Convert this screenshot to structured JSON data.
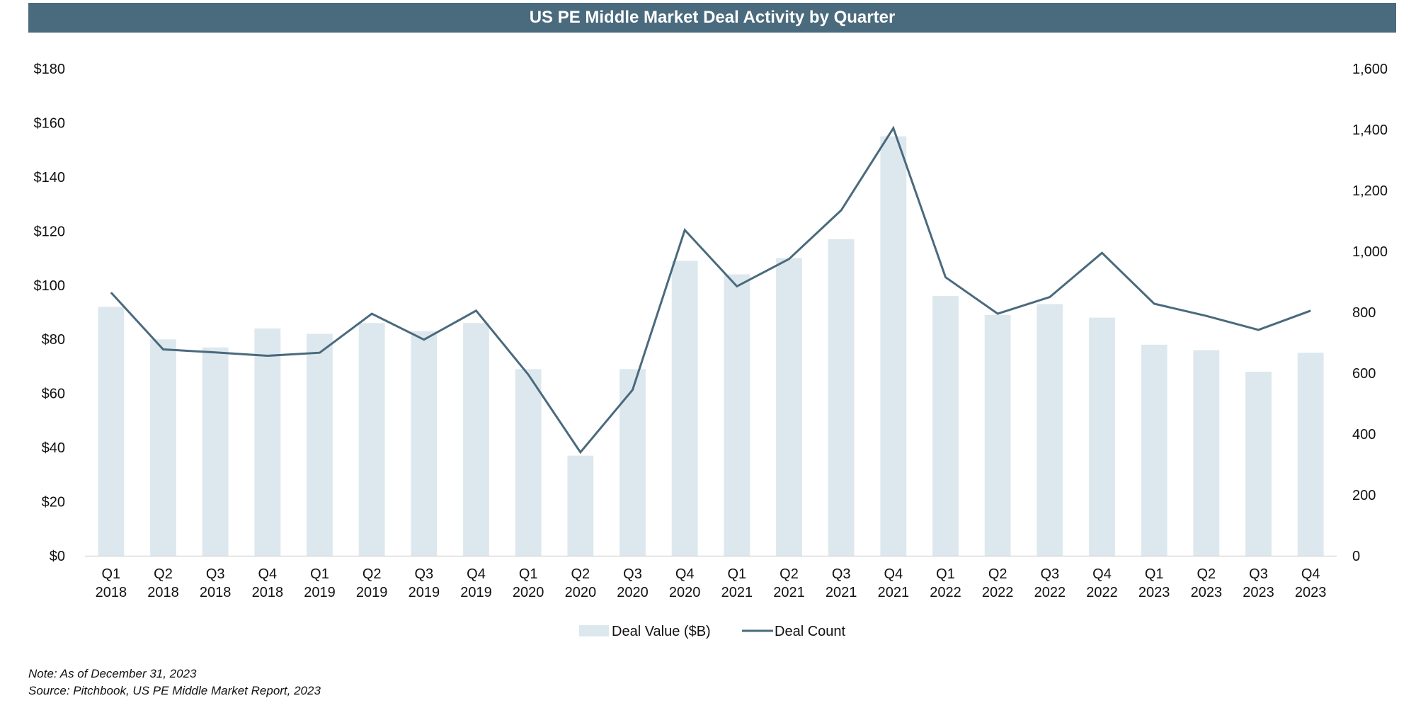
{
  "chart_data": {
    "type": "bar",
    "title": "US PE Middle Market Deal Activity by Quarter",
    "categories": [
      [
        "Q1",
        "2018"
      ],
      [
        "Q2",
        "2018"
      ],
      [
        "Q3",
        "2018"
      ],
      [
        "Q4",
        "2018"
      ],
      [
        "Q1",
        "2019"
      ],
      [
        "Q2",
        "2019"
      ],
      [
        "Q3",
        "2019"
      ],
      [
        "Q4",
        "2019"
      ],
      [
        "Q1",
        "2020"
      ],
      [
        "Q2",
        "2020"
      ],
      [
        "Q3",
        "2020"
      ],
      [
        "Q4",
        "2020"
      ],
      [
        "Q1",
        "2021"
      ],
      [
        "Q2",
        "2021"
      ],
      [
        "Q3",
        "2021"
      ],
      [
        "Q4",
        "2021"
      ],
      [
        "Q1",
        "2022"
      ],
      [
        "Q2",
        "2022"
      ],
      [
        "Q3",
        "2022"
      ],
      [
        "Q4",
        "2022"
      ],
      [
        "Q1",
        "2023"
      ],
      [
        "Q2",
        "2023"
      ],
      [
        "Q3",
        "2023"
      ],
      [
        "Q4",
        "2023"
      ]
    ],
    "series": [
      {
        "name": "Deal Value ($B)",
        "type": "bar",
        "axis": "left",
        "color": "#dde8ee",
        "values": [
          92,
          80,
          77,
          84,
          82,
          86,
          83,
          86,
          69,
          37,
          69,
          109,
          104,
          110,
          117,
          155,
          96,
          89,
          93,
          88,
          78,
          76,
          68,
          75
        ]
      },
      {
        "name": "Deal Count",
        "type": "line",
        "axis": "right",
        "color": "#4a6a7d",
        "values": [
          865,
          678,
          668,
          657,
          667,
          795,
          710,
          805,
          595,
          340,
          545,
          1070,
          885,
          975,
          1135,
          1405,
          915,
          795,
          850,
          995,
          828,
          788,
          742,
          805
        ]
      }
    ],
    "y_left": {
      "min": 0,
      "max": 180,
      "ticks": [
        "$0",
        "$20",
        "$40",
        "$60",
        "$80",
        "$100",
        "$120",
        "$140",
        "$160",
        "$180"
      ]
    },
    "y_right": {
      "min": 0,
      "max": 1600,
      "ticks": [
        "0",
        "200",
        "400",
        "600",
        "800",
        "1,000",
        "1,200",
        "1,400",
        "1,600"
      ]
    },
    "grid": false,
    "legend_position": "bottom-center"
  },
  "notes": {
    "note": "Note: As of December 31, 2023",
    "source": "Source: Pitchbook, US PE Middle Market Report, 2023"
  }
}
